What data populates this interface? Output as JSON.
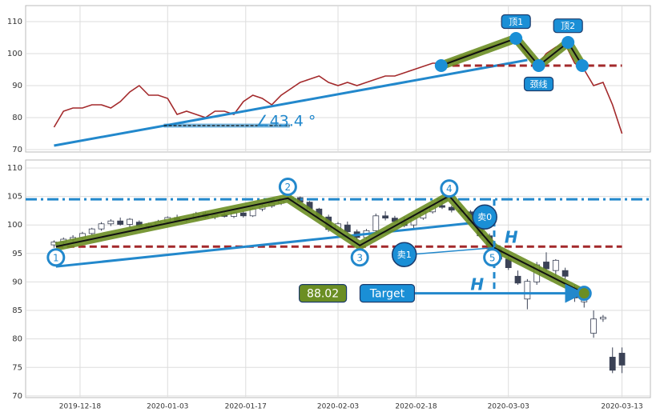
{
  "chart_data": [
    {
      "type": "line",
      "xlim": [
        -3,
        63
      ],
      "ylim": [
        69.25,
        115
      ],
      "yticks": [
        70,
        80,
        90,
        100,
        110
      ],
      "xticks": [
        2.75,
        12,
        20.25,
        30,
        38.25,
        48,
        60
      ],
      "grid": true,
      "series": [
        {
          "color": "#a3292b",
          "values": [
            77,
            82,
            83,
            83,
            84,
            84,
            83,
            85,
            88,
            90,
            87,
            87,
            86,
            81,
            82,
            81,
            80,
            82,
            82,
            81,
            85,
            87,
            86,
            84,
            87,
            89,
            91,
            92,
            93,
            91,
            90,
            91,
            90,
            91,
            92,
            93,
            93,
            94,
            95,
            96,
            97,
            97,
            98,
            99,
            100,
            101,
            102,
            103,
            104,
            104,
            99,
            96,
            100,
            102,
            103,
            97,
            95,
            90,
            91,
            84,
            75
          ]
        }
      ],
      "annotations": {
        "lines": [
          {
            "kind": "trend",
            "color": "#2288cc",
            "points": [
              [
                0,
                71.25
              ],
              [
                50,
                98
              ]
            ]
          },
          {
            "kind": "guide",
            "color": "#111111",
            "points": [
              [
                11.6,
                77.5
              ],
              [
                24.9,
                77.5
              ]
            ]
          },
          {
            "kind": "neckline",
            "color": "#a3292b",
            "points": [
              [
                40.9,
                96.25
              ],
              [
                60,
                96.25
              ]
            ]
          },
          {
            "kind": "pattern",
            "color": "#6b8e23",
            "points": [
              [
                40.9,
                96.25
              ],
              [
                48.8,
                104.75
              ],
              [
                51.2,
                96.25
              ],
              [
                54.3,
                103.5
              ],
              [
                55.8,
                96.25
              ]
            ]
          }
        ],
        "circles": [
          {
            "x": 40.9,
            "y": 96.25
          },
          {
            "x": 48.8,
            "y": 104.75
          },
          {
            "x": 51.2,
            "y": 96.25
          },
          {
            "x": 54.3,
            "y": 103.5
          },
          {
            "x": 55.8,
            "y": 96.25
          }
        ],
        "labels": [
          {
            "kind": "angle",
            "text": "∠43.4 °",
            "x": 24.5,
            "y": 79
          },
          {
            "kind": "box",
            "text": "顶1",
            "x": 48.8,
            "y": 110
          },
          {
            "kind": "box",
            "text": "顶2",
            "x": 54.3,
            "y": 108.7
          },
          {
            "kind": "box",
            "text": "颈线",
            "x": 51.2,
            "y": 90.5
          }
        ]
      }
    },
    {
      "type": "candlestick",
      "xlim": [
        -3,
        63
      ],
      "ylim": [
        69.7,
        111.4
      ],
      "yticks": [
        70,
        75,
        80,
        85,
        90,
        95,
        100,
        105,
        110
      ],
      "xticks": [
        {
          "value": 2.75,
          "label": "2019-12-18"
        },
        {
          "value": 12,
          "label": "2020-01-03"
        },
        {
          "value": 20.25,
          "label": "2020-01-17"
        },
        {
          "value": 30,
          "label": "2020-02-03"
        },
        {
          "value": 38.25,
          "label": "2020-02-18"
        },
        {
          "value": 48,
          "label": "2020-03-03"
        },
        {
          "value": 60,
          "label": "2020-03-13"
        }
      ],
      "grid": true,
      "up_color": "#ffffff",
      "down_color": "#3b4256",
      "candles": [
        [
          96.5,
          97.3,
          96,
          97
        ],
        [
          97,
          97.8,
          96.6,
          97.5
        ],
        [
          97.5,
          98.2,
          97,
          97.8
        ],
        [
          97.8,
          98.8,
          97.5,
          98.5
        ],
        [
          98.5,
          99.5,
          98.2,
          99.3
        ],
        [
          99.3,
          100.5,
          99,
          100.2
        ],
        [
          100.2,
          101,
          99.8,
          100.7
        ],
        [
          100.7,
          101.3,
          99.9,
          100.1
        ],
        [
          100.1,
          101.2,
          99.5,
          101
        ],
        [
          100.5,
          100.8,
          99.6,
          99.8
        ],
        [
          99.8,
          100.4,
          99.2,
          100.1
        ],
        [
          100.1,
          100.9,
          99.8,
          100.6
        ],
        [
          100.6,
          101.5,
          100.3,
          101.3
        ],
        [
          101.3,
          101.8,
          100.6,
          100.8
        ],
        [
          100.8,
          101.3,
          100.4,
          101
        ],
        [
          101,
          102.3,
          100.8,
          102
        ],
        [
          102,
          102.4,
          101.2,
          101.4
        ],
        [
          101.4,
          102,
          101,
          101.8
        ],
        [
          101.8,
          102.5,
          101.3,
          101.5
        ],
        [
          101.5,
          102.3,
          101.2,
          102.1
        ],
        [
          102.1,
          102.5,
          101.3,
          101.6
        ],
        [
          101.6,
          103,
          101.4,
          102.8
        ],
        [
          102.8,
          103.6,
          102.4,
          103.3
        ],
        [
          103.3,
          104,
          103,
          103.8
        ],
        [
          103.8,
          104.6,
          103.5,
          104.2
        ],
        [
          104.2,
          105.2,
          104,
          104.8
        ],
        [
          104.8,
          105,
          103.8,
          104
        ],
        [
          104,
          104.2,
          102.5,
          102.8
        ],
        [
          102.8,
          103,
          101,
          101.4
        ],
        [
          101.4,
          101.8,
          98.8,
          99.2
        ],
        [
          99.2,
          100.5,
          98.5,
          100.2
        ],
        [
          100,
          100.6,
          98.4,
          98.8
        ],
        [
          98.8,
          99.2,
          97.4,
          97.8
        ],
        [
          97.8,
          99.3,
          97.5,
          99
        ],
        [
          99,
          102,
          98.8,
          101.6
        ],
        [
          101.6,
          102.4,
          100.8,
          101.2
        ],
        [
          101.2,
          101.6,
          100.4,
          100.6
        ],
        [
          100.6,
          101.4,
          99.6,
          99.9
        ],
        [
          100,
          101.5,
          99.4,
          101.2
        ],
        [
          101.2,
          102.5,
          100.9,
          102.3
        ],
        [
          102.3,
          103.6,
          102,
          103.4
        ],
        [
          103.4,
          104.3,
          102.8,
          103.1
        ],
        [
          103.1,
          103.4,
          102.2,
          102.6
        ],
        [
          102.6,
          103.2,
          102,
          102.3
        ],
        [
          102.3,
          102.6,
          100.5,
          100.8
        ],
        [
          100.8,
          101,
          97.8,
          98.1
        ],
        [
          98.1,
          98.5,
          95.4,
          95.8
        ],
        [
          95.8,
          96.2,
          93.4,
          94
        ],
        [
          94,
          94.5,
          92.1,
          92.5
        ],
        [
          91,
          92,
          89.5,
          89.8
        ],
        [
          87,
          90.5,
          85.2,
          90.1
        ],
        [
          90,
          93.5,
          89.5,
          93
        ],
        [
          93.5,
          95.2,
          91.8,
          92.3
        ],
        [
          92,
          94,
          91,
          93.8
        ],
        [
          92,
          92.5,
          90.5,
          91
        ],
        [
          89,
          89.5,
          86.5,
          87.2
        ],
        [
          86.5,
          89,
          85.5,
          88.5
        ],
        [
          81,
          85,
          80.2,
          83.5
        ],
        [
          83.5,
          84.2,
          83,
          83.8
        ],
        [
          76.8,
          78.5,
          74,
          74.5
        ],
        [
          77.5,
          78.5,
          74,
          75.4
        ]
      ],
      "annotations": {
        "lines": [
          {
            "kind": "level",
            "color": "#2288cc",
            "points": [
              [
                -3,
                104.5
              ],
              [
                63,
                104.5
              ]
            ]
          },
          {
            "kind": "neckline",
            "color": "#a3292b",
            "points": [
              [
                0.2,
                96.2
              ],
              [
                60,
                96.2
              ]
            ]
          },
          {
            "kind": "trend",
            "color": "#2288cc",
            "points": [
              [
                0.2,
                92.7
              ],
              [
                45,
                100.5
              ]
            ]
          },
          {
            "kind": "pattern",
            "color": "#6b8e23",
            "points": [
              [
                0.2,
                96.2
              ],
              [
                24.7,
                104.7
              ],
              [
                32.3,
                96.4
              ],
              [
                41.75,
                105.1
              ],
              [
                46.5,
                96
              ],
              [
                56,
                88
              ]
            ]
          },
          {
            "kind": "thin",
            "color": "#2288cc",
            "points": [
              [
                37.5,
                94.8
              ],
              [
                46.5,
                96
              ]
            ]
          },
          {
            "kind": "vertical",
            "color": "#2288cc",
            "points": [
              [
                46.5,
                104.5
              ],
              [
                46.5,
                88
              ]
            ]
          },
          {
            "kind": "arrow",
            "color": "#2288cc",
            "points": [
              [
                37,
                88
              ],
              [
                55.5,
                88
              ]
            ]
          }
        ],
        "circles": [
          {
            "x": 0.2,
            "y": 94.3,
            "label": "1"
          },
          {
            "x": 24.7,
            "y": 106.7,
            "label": "2"
          },
          {
            "x": 32.3,
            "y": 94.3,
            "label": "3"
          },
          {
            "x": 41.75,
            "y": 106.4,
            "label": "4"
          },
          {
            "x": 46.3,
            "y": 94.3,
            "label": "5"
          },
          {
            "x": 56,
            "y": 88
          }
        ],
        "labels": [
          {
            "kind": "bubble",
            "text": "卖0",
            "x": 45.5,
            "y": 101.4
          },
          {
            "kind": "bubble",
            "text": "卖1",
            "x": 37,
            "y": 94.8
          },
          {
            "kind": "italic",
            "text": "H",
            "x": 48.3,
            "y": 97.8
          },
          {
            "kind": "italic",
            "text": "H",
            "x": 44.7,
            "y": 89.5
          },
          {
            "kind": "box",
            "text": "Target",
            "x": 35.2,
            "y": 88
          },
          {
            "kind": "greenbox",
            "text": "88.02",
            "x": 28.4,
            "y": 88
          }
        ]
      }
    }
  ]
}
